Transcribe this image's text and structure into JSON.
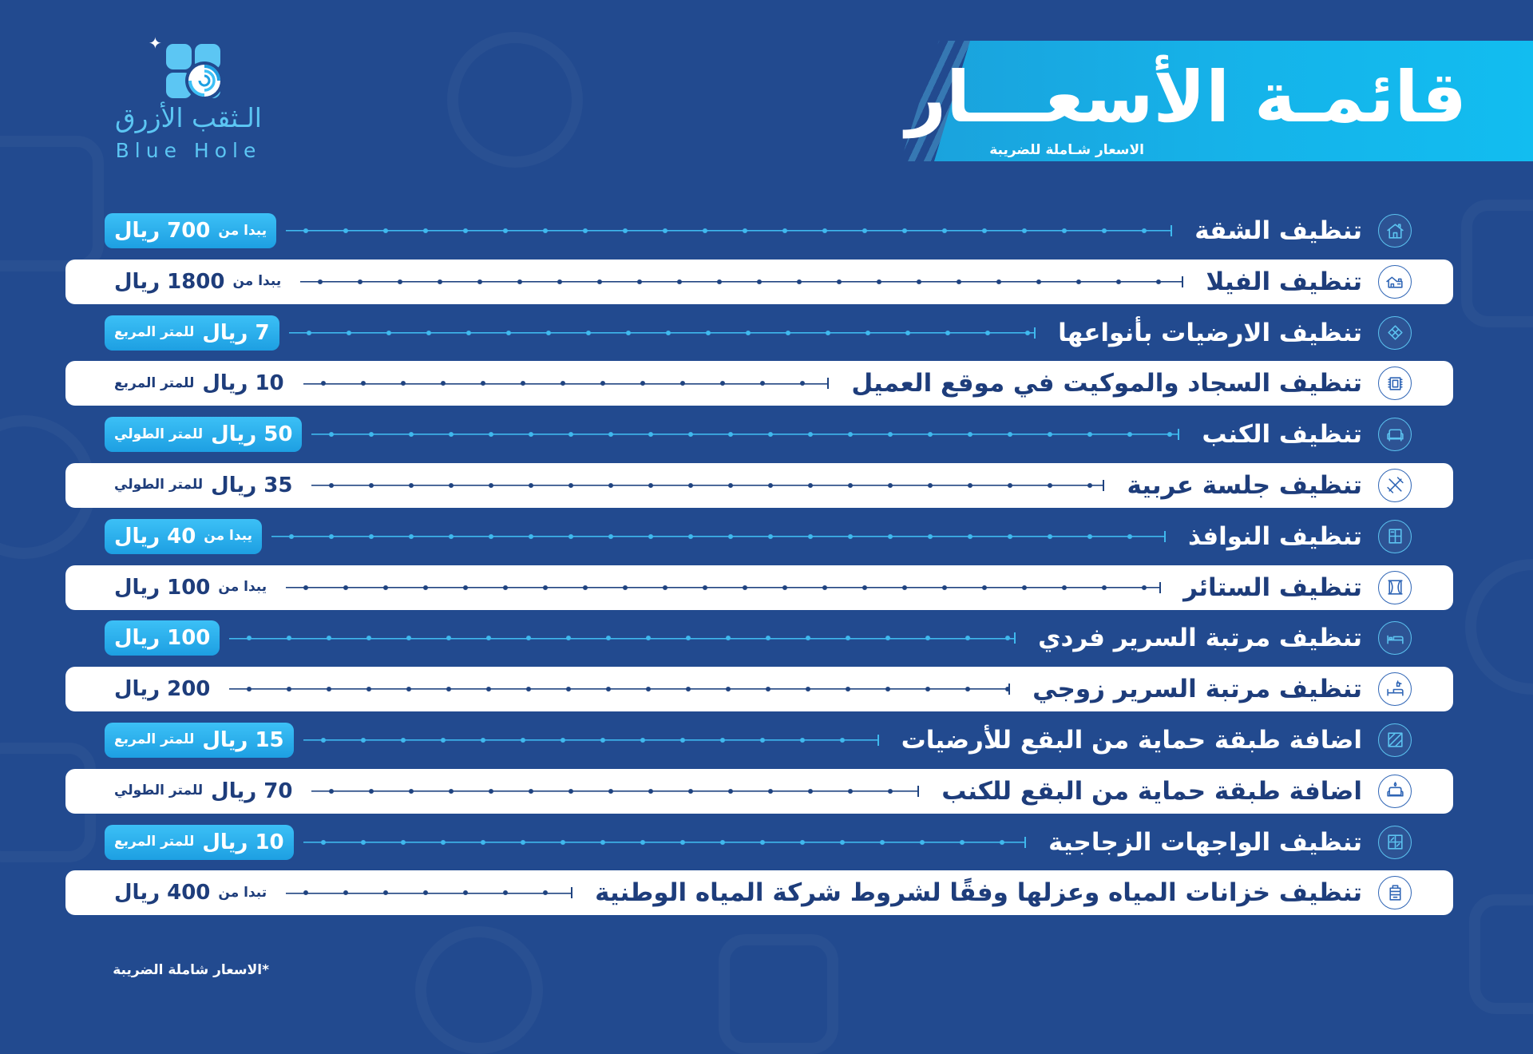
{
  "brand": {
    "name_ar": "الـثقب الأزرق",
    "name_en": "Blue Hole",
    "logo_icon": "blue-hole-logo-icon"
  },
  "header": {
    "title": "قائمـة الأسعـــار",
    "subtitle": "الاسعار شـاملة للضريبة"
  },
  "colors": {
    "background": "#224a8f",
    "accent": "#22aef0",
    "banner": "#15b4ea",
    "row_light": "#ffffff",
    "navy_text": "#1e3d7b"
  },
  "services": [
    {
      "name": "تنظيف الشقة",
      "icon": "apartment-icon",
      "price": {
        "before": "يبدا من",
        "amount": "700 ريال"
      }
    },
    {
      "name": "تنظيف الفيلا",
      "icon": "villa-icon",
      "price": {
        "before": "يبدا من",
        "amount": "1800 ريال"
      }
    },
    {
      "name": "تنظيف الارضيات بأنواعها",
      "icon": "floor-tiles-icon",
      "price": {
        "amount": "7 ريال",
        "after": "للمتر المربع"
      }
    },
    {
      "name": "تنظيف السجاد والموكيت في موقع العميل",
      "icon": "carpet-icon",
      "price": {
        "amount": "10 ريال",
        "after": "للمتر المربع"
      }
    },
    {
      "name": "تنظيف الكنب",
      "icon": "sofa-icon",
      "price": {
        "amount": "50 ريال",
        "after": "للمتر الطولي"
      }
    },
    {
      "name": "تنظيف جلسة عربية",
      "icon": "cleaning-tools-icon",
      "price": {
        "amount": "35 ريال",
        "after": "للمتر الطولي"
      }
    },
    {
      "name": "تنظيف النوافذ",
      "icon": "window-icon",
      "price": {
        "before": "يبدا من",
        "amount": "40 ريال"
      }
    },
    {
      "name": "تنظيف الستائر",
      "icon": "curtains-icon",
      "price": {
        "before": "يبدا من",
        "amount": "100 ريال"
      }
    },
    {
      "name": "تنظيف مرتبة السرير فردي",
      "icon": "bed-icon",
      "price": {
        "amount": "100 ريال"
      }
    },
    {
      "name": "تنظيف مرتبة السرير زوجي",
      "icon": "bed-spray-icon",
      "price": {
        "amount": "200 ريال"
      }
    },
    {
      "name": "اضافة طبقة حماية من البقع للأرضيات",
      "icon": "floor-protection-icon",
      "price": {
        "amount": "15 ريال",
        "after": "للمتر المربع"
      }
    },
    {
      "name": "اضافة طبقة حماية من البقع للكنب",
      "icon": "sofa-protection-icon",
      "price": {
        "amount": "70 ريال",
        "after": "للمتر الطولي"
      }
    },
    {
      "name": "تنظيف الواجهات الزجاجية",
      "icon": "glass-facade-icon",
      "price": {
        "amount": "10 ريال",
        "after": "للمتر المربع"
      }
    },
    {
      "name": "تنظيف خزانات المياه وعزلها وفقًا لشروط شركة المياه الوطنية",
      "icon": "water-tank-icon",
      "price": {
        "before": "تبدا من",
        "amount": "400 ريال"
      }
    }
  ],
  "footer_note": "*الاسعار شاملة الضريبة"
}
